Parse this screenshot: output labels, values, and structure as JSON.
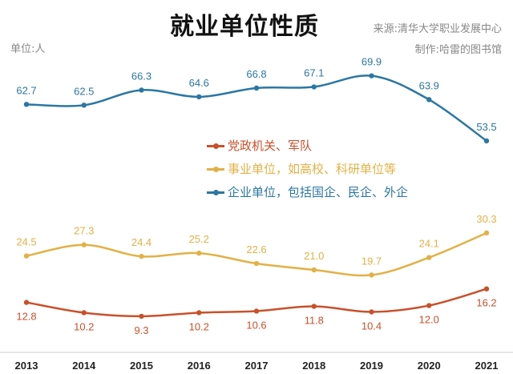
{
  "title": "就业单位性质",
  "unit_label": "单位:人",
  "source": "来源:清华大学职业发展中心",
  "credit": "制作:哈雷的图书馆",
  "chart_data": {
    "type": "line",
    "title": "就业单位性质",
    "x": [
      "2013",
      "2014",
      "2015",
      "2016",
      "2017",
      "2018",
      "2019",
      "2020",
      "2021"
    ],
    "ylim": [
      0,
      89
    ],
    "grid": false,
    "legend_position": "center",
    "series": [
      {
        "name": "党政机关、军队",
        "color": "#c8512b",
        "label_pos": "below",
        "values": [
          12.8,
          10.2,
          9.3,
          10.2,
          10.6,
          11.8,
          10.4,
          12.0,
          16.2
        ]
      },
      {
        "name": "事业单位，如高校、科研单位等",
        "color": "#e2b146",
        "label_pos": "above",
        "values": [
          24.5,
          27.3,
          24.4,
          25.2,
          22.6,
          21.0,
          19.7,
          24.1,
          30.3
        ]
      },
      {
        "name": "企业单位，包括国企、民企、外企",
        "color": "#2b77a3",
        "label_pos": "above",
        "values": [
          62.7,
          62.5,
          66.3,
          64.6,
          66.8,
          67.1,
          69.9,
          63.9,
          53.5
        ]
      }
    ]
  }
}
